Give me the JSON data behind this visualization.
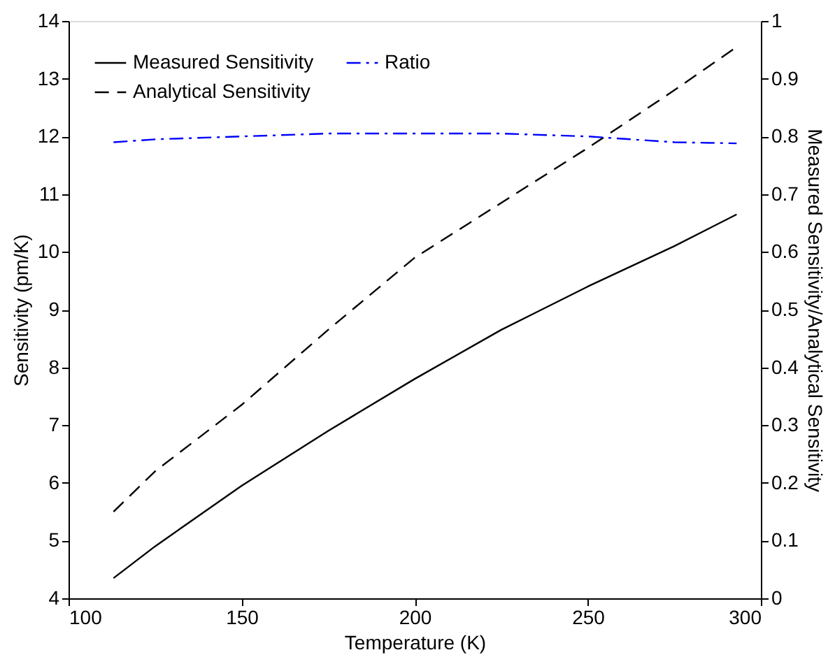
{
  "chart_data": {
    "type": "line",
    "xlabel": "Temperature (K)",
    "ylabel": "Sensitivity (pm/K)",
    "y2label": "Measured Sensitivity/Analytical Sensitivity",
    "x": [
      113,
      125,
      150,
      175,
      200,
      225,
      250,
      275,
      293
    ],
    "series": [
      {
        "name": "Measured Sensitivity",
        "color": "#000000",
        "line_style": "solid",
        "values": [
          4.35,
          4.9,
          5.95,
          6.9,
          7.8,
          8.65,
          9.4,
          10.1,
          10.65
        ]
      },
      {
        "name": "Analytical Sensitivity",
        "color": "#000000",
        "line_style": "dashed",
        "values": [
          5.5,
          6.2,
          7.35,
          8.65,
          9.9,
          10.85,
          11.8,
          12.8,
          13.55
        ]
      },
      {
        "name": "Ratio",
        "color": "#0000ff",
        "line_style": "dashdot",
        "axis": "y2",
        "values": [
          0.79,
          0.795,
          0.8,
          0.805,
          0.805,
          0.805,
          0.8,
          0.79,
          0.788
        ]
      }
    ],
    "xlim": [
      100,
      300
    ],
    "xticks": [
      100,
      150,
      200,
      250,
      300
    ],
    "ylim": [
      4,
      14
    ],
    "yticks": [
      4,
      5,
      6,
      7,
      8,
      9,
      10,
      11,
      12,
      13,
      14
    ],
    "y2lim": [
      0,
      1
    ],
    "y2ticks": [
      0,
      0.1,
      0.2,
      0.3,
      0.4,
      0.5,
      0.6,
      0.7,
      0.8,
      0.9,
      1
    ],
    "legend": "top left",
    "grid": false
  }
}
